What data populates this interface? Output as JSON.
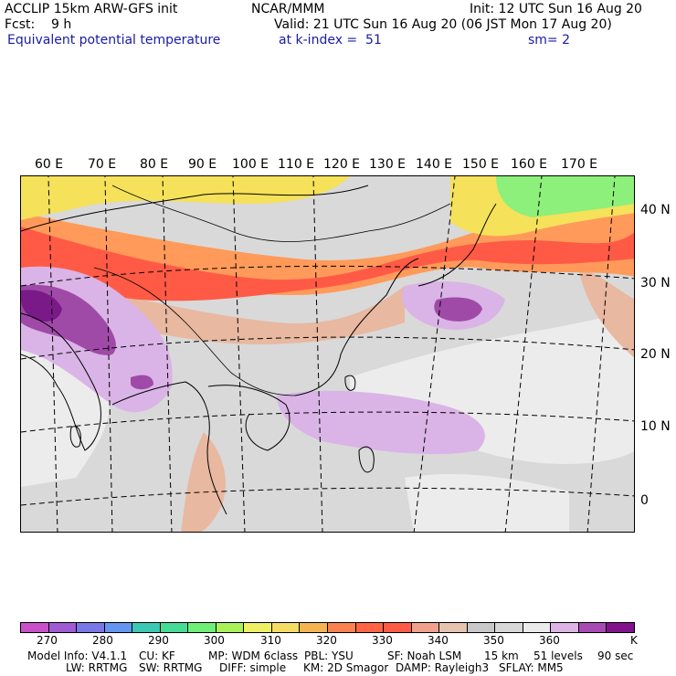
{
  "header": {
    "line1_left": "ACCLIP 15km ARW-GFS init",
    "line1_mid": "NCAR/MMM",
    "line1_right": "Init: 12 UTC Sun 16 Aug 20",
    "line2_left": "Fcst:    9 h",
    "line2_right": "Valid: 21 UTC Sun 16 Aug 20 (06 JST Mon 17 Aug 20)",
    "field_name": "Equivalent potential temperature",
    "level": "at k-index =  51",
    "smoothing": "sm= 2"
  },
  "map": {
    "lon_labels": [
      "60 E",
      "70 E",
      "80 E",
      "90 E",
      "100 E",
      "110 E",
      "120 E",
      "130 E",
      "140 E",
      "150 E",
      "160 E",
      "170 E"
    ],
    "lat_labels": [
      "40 N",
      "30 N",
      "20 N",
      "10 N",
      "0"
    ],
    "background_color": "#d9d9d9",
    "region_colors": {
      "warm_band": "#ff5a46",
      "orange": "#ff9a5a",
      "yellow": "#f5e15a",
      "green": "#8cf07a",
      "light_gray": "#ececec",
      "tan": "#e8b8a0",
      "lilac": "#dab4e6",
      "purple": "#a04aa8",
      "dark_purple": "#7a1a88"
    }
  },
  "colorbar": {
    "colors": [
      "#c850c8",
      "#a05ad2",
      "#7878e6",
      "#6496f0",
      "#3cc8b4",
      "#46dc96",
      "#6ef078",
      "#aaf05a",
      "#f0f064",
      "#f5dc64",
      "#f5b450",
      "#fa8250",
      "#ff6446",
      "#ff5a46",
      "#f0a08c",
      "#e6c3af",
      "#c8c8c8",
      "#d7d7d7",
      "#ebebeb",
      "#dcb4e6",
      "#a84ab4",
      "#82128c"
    ],
    "labels": [
      "270",
      "280",
      "290",
      "300",
      "310",
      "320",
      "330",
      "340",
      "350",
      "360"
    ],
    "unit": "K"
  },
  "footer": {
    "line1": [
      "Model Info: V4.1.1",
      "CU: KF",
      "MP: WDM 6class",
      "PBL: YSU",
      "SF: Noah LSM",
      "15 km",
      "51 levels",
      "90 sec"
    ],
    "line2": [
      "LW: RRTMG",
      "SW: RRTMG",
      "DIFF: simple",
      "KM: 2D Smagor",
      "DAMP: Rayleigh3",
      "SFLAY: MM5"
    ]
  }
}
